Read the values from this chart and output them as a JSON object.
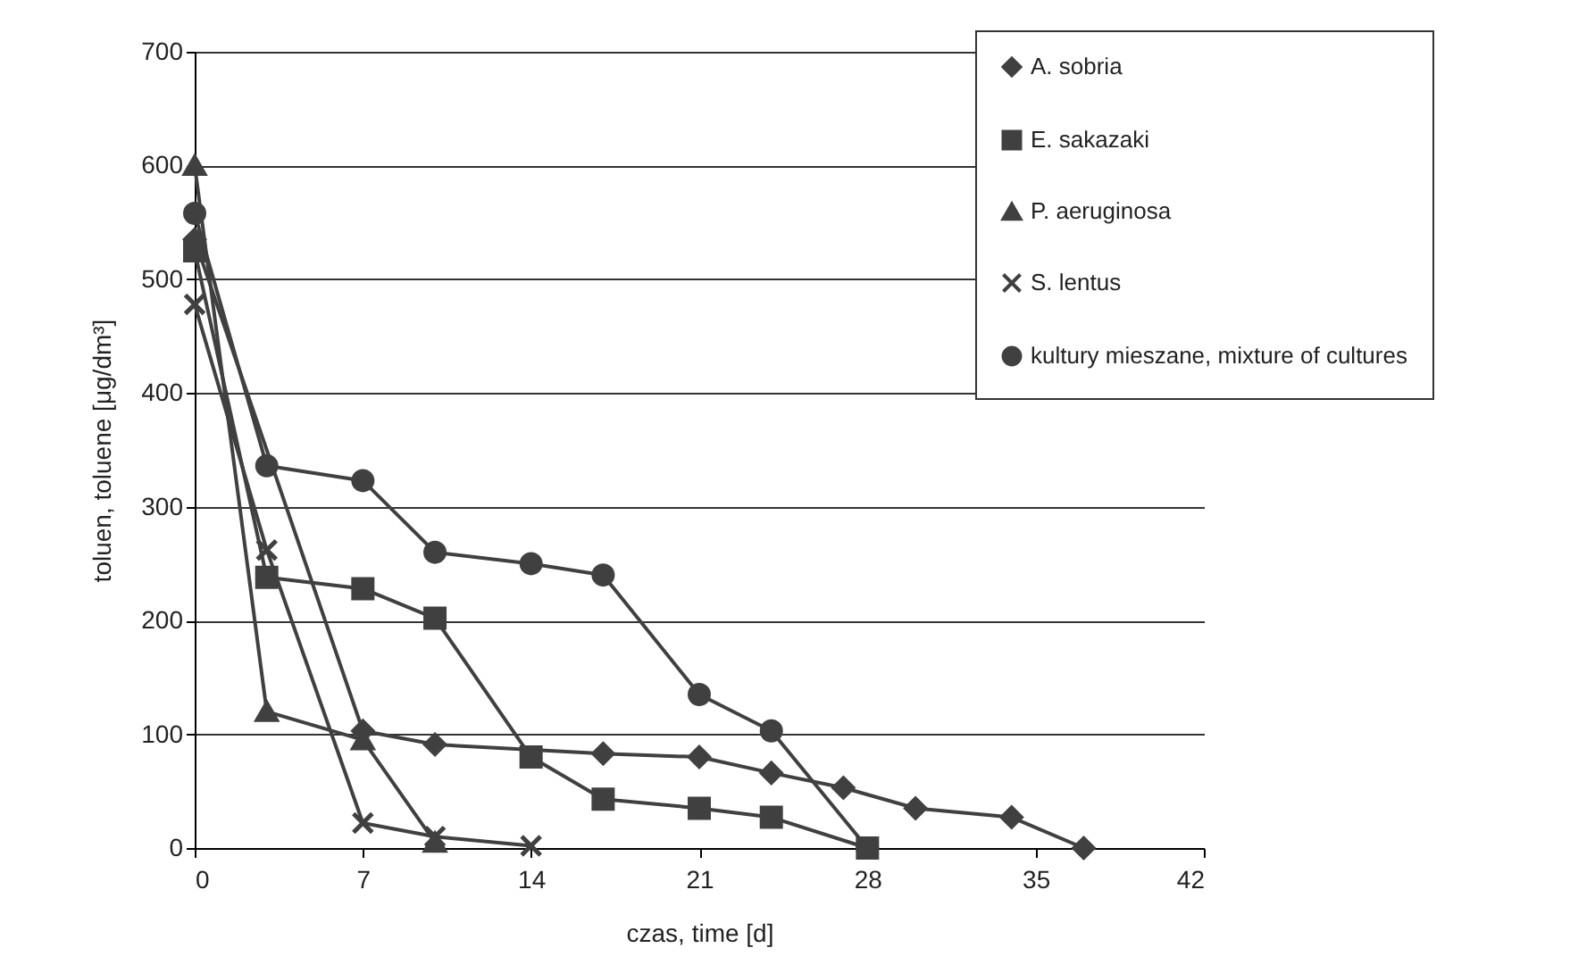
{
  "chart_data": {
    "type": "line",
    "xlabel": "czas, time [d]",
    "ylabel": "toluen, toluene [μg/dm³]",
    "xlim": [
      0,
      42
    ],
    "xticks": [
      0,
      7,
      14,
      21,
      28,
      35,
      42
    ],
    "ylim": [
      0,
      700
    ],
    "yticks": [
      0,
      100,
      200,
      300,
      400,
      500,
      600,
      700
    ],
    "grid": "y",
    "legend": "top right",
    "line_style": "solid",
    "series": [
      {
        "name": "A. sobria",
        "color": "#404040",
        "marker": "diamond",
        "x": [
          0,
          7,
          10,
          17,
          21,
          24,
          27,
          30,
          34,
          37
        ],
        "values": [
          535,
          103,
          91,
          83,
          80,
          66,
          53,
          35,
          27,
          0
        ]
      },
      {
        "name": "E. sakazaki",
        "color": "#404040",
        "marker": "square",
        "x": [
          0,
          3,
          7,
          10,
          14,
          17,
          21,
          24,
          28
        ],
        "values": [
          525,
          238,
          228,
          202,
          80,
          43,
          35,
          27,
          0
        ]
      },
      {
        "name": "P. aeruginosa",
        "color": "#404040",
        "marker": "triangle",
        "x": [
          0,
          3,
          7,
          10
        ],
        "values": [
          600,
          120,
          95,
          5
        ]
      },
      {
        "name": "S. lentus",
        "color": "#404040",
        "marker": "cross",
        "x": [
          0,
          3,
          7,
          10,
          14
        ],
        "values": [
          478,
          262,
          22,
          10,
          2
        ]
      },
      {
        "name": "kultury mieszane, mixture of cultures",
        "color": "#404040",
        "marker": "circle",
        "x": [
          0,
          3,
          7,
          10,
          14,
          17,
          21,
          24,
          28
        ],
        "values": [
          558,
          336,
          323,
          260,
          250,
          240,
          135,
          103,
          0
        ]
      }
    ]
  }
}
